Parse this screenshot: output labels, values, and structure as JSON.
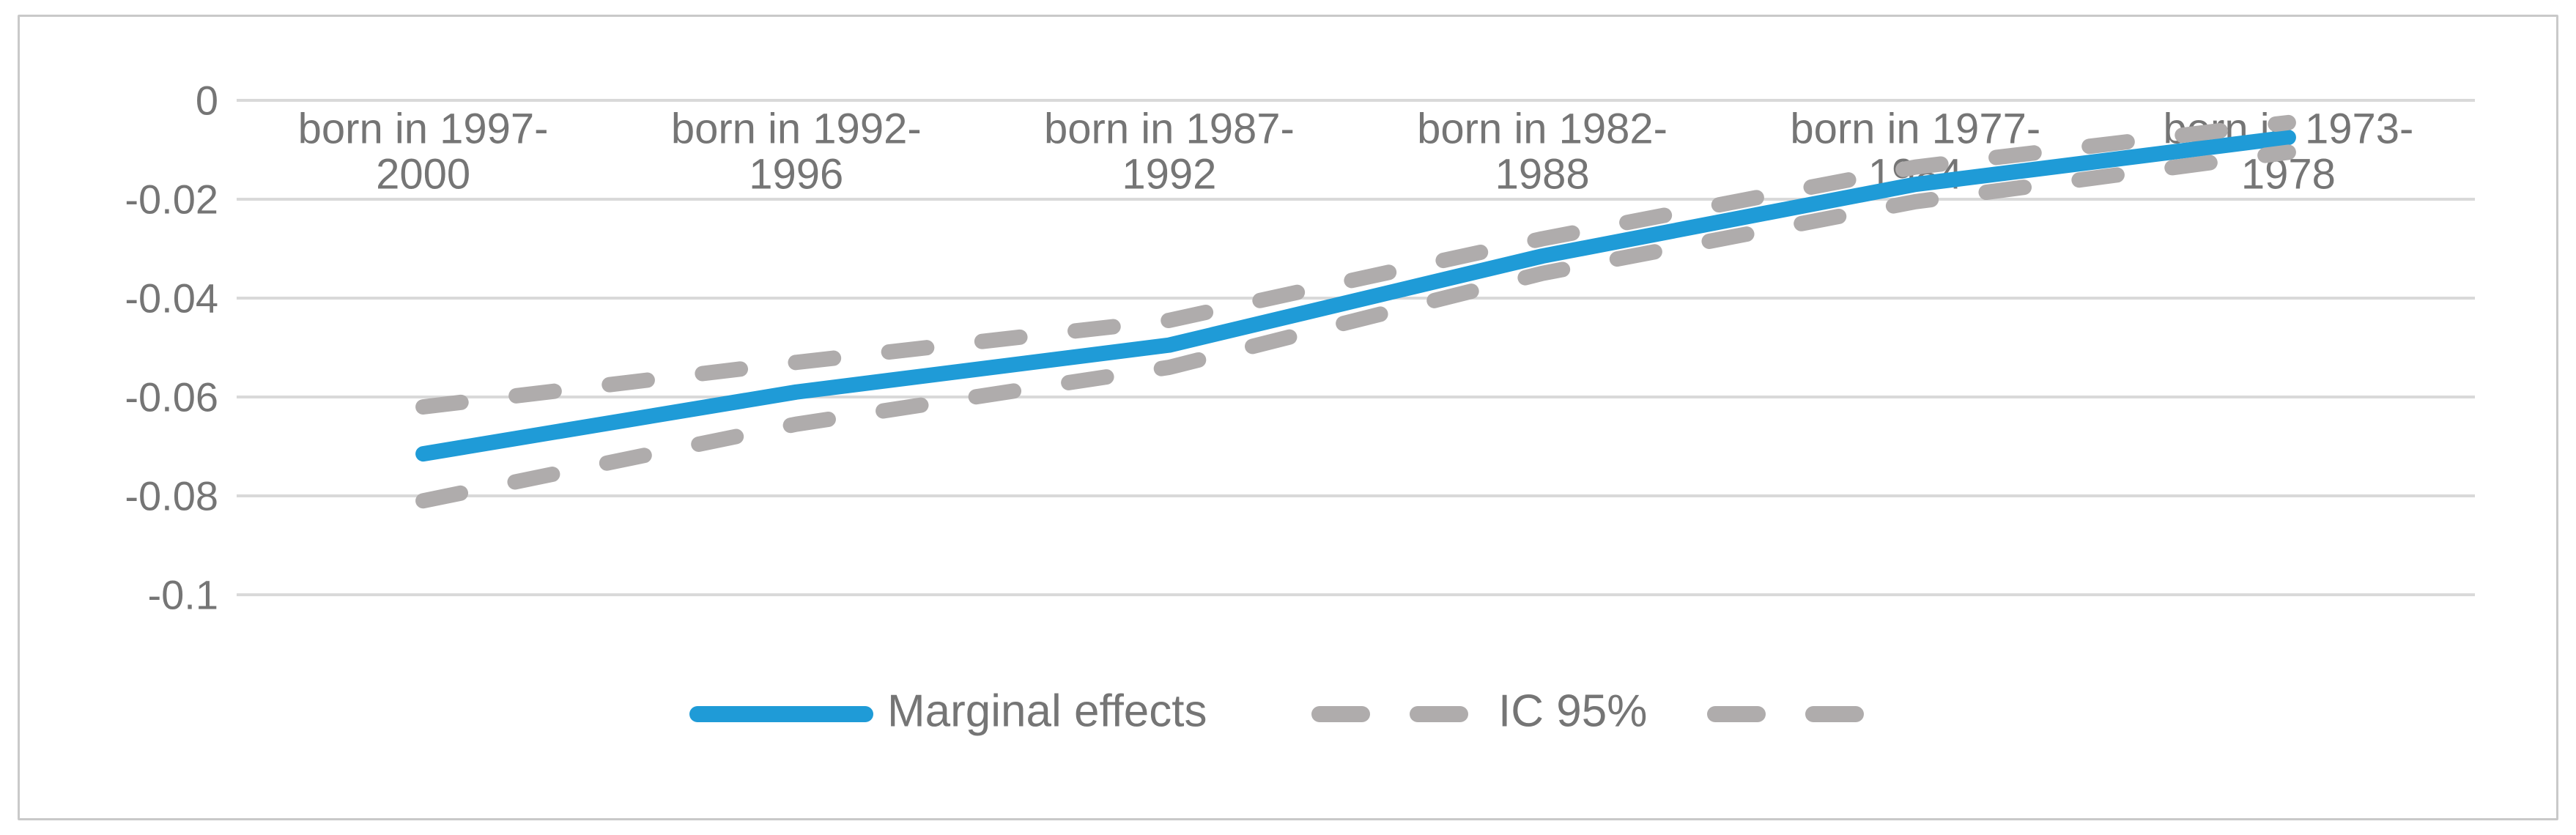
{
  "colors": {
    "line_blue": "#1F9BD7",
    "ci_gray": "#AFACAC",
    "gridline": "#D9D9D9",
    "axis_text": "#757575",
    "border": "#C9C9C9",
    "background": "#FFFFFF"
  },
  "chart_data": {
    "type": "line",
    "title": "",
    "xlabel": "",
    "ylabel": "",
    "grid": "horizontal",
    "legend_position": "bottom-center",
    "ylim": [
      -0.1,
      0
    ],
    "yticks": {
      "labels": [
        "0",
        "-0.02",
        "-0.04",
        "-0.06",
        "-0.08",
        "-0.1"
      ],
      "values": [
        0,
        -0.02,
        -0.04,
        -0.06,
        -0.08,
        -0.1
      ]
    },
    "categories": [
      "born in  1997-2000",
      "born in 1992-1996",
      "born in 1987-1992",
      "born in 1982-1988",
      "born in 1977-1984",
      "born in 1973-1978"
    ],
    "category_label_lines": [
      [
        "born in  1997-",
        "2000"
      ],
      [
        "born in 1992-",
        "1996"
      ],
      [
        "born in 1987-",
        "1992"
      ],
      [
        "born in 1982-",
        "1988"
      ],
      [
        "born in 1977-",
        "1984"
      ],
      [
        "born in 1973-",
        "1978"
      ]
    ],
    "series": [
      {
        "name": "Marginal effects",
        "style": "solid",
        "color_key": "line_blue",
        "values": [
          -0.0715,
          -0.059,
          -0.0495,
          -0.0315,
          -0.017,
          -0.0075
        ]
      },
      {
        "name": "IC 95% upper",
        "style": "dashed",
        "color_key": "ci_gray",
        "values": [
          -0.062,
          -0.053,
          -0.0445,
          -0.028,
          -0.0135,
          -0.0045
        ]
      },
      {
        "name": "IC 95% lower",
        "style": "dashed",
        "color_key": "ci_gray",
        "values": [
          -0.081,
          -0.0655,
          -0.054,
          -0.035,
          -0.0205,
          -0.0105
        ]
      }
    ],
    "legend": [
      {
        "label": "Marginal effects",
        "swatch": "solid"
      },
      {
        "label": "IC 95%",
        "swatch": "dashed"
      },
      {
        "label": "",
        "swatch": "dashed"
      }
    ]
  }
}
